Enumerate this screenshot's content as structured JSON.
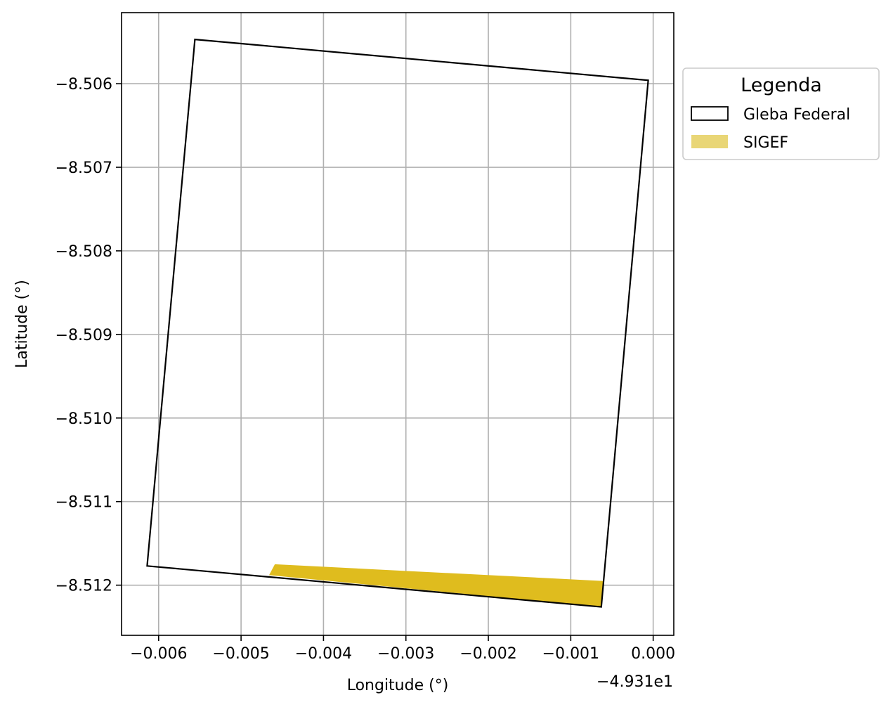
{
  "chart_data": {
    "type": "map",
    "xlabel": "Longitude (°)",
    "ylabel": "Latitude (°)",
    "x_offset_label": "−4.931e1",
    "x_offset": -49.31,
    "xlim": [
      -0.00645,
      0.00025
    ],
    "ylim": [
      -8.5126,
      -8.50515
    ],
    "grid": true,
    "x_ticks": [
      {
        "value": -0.006,
        "label": "−0.006"
      },
      {
        "value": -0.005,
        "label": "−0.005"
      },
      {
        "value": -0.004,
        "label": "−0.004"
      },
      {
        "value": -0.003,
        "label": "−0.003"
      },
      {
        "value": -0.002,
        "label": "−0.002"
      },
      {
        "value": -0.001,
        "label": "−0.001"
      },
      {
        "value": 0.0,
        "label": "0.000"
      }
    ],
    "y_ticks": [
      {
        "value": -8.506,
        "label": "−8.506"
      },
      {
        "value": -8.507,
        "label": "−8.507"
      },
      {
        "value": -8.508,
        "label": "−8.508"
      },
      {
        "value": -8.509,
        "label": "−8.509"
      },
      {
        "value": -8.51,
        "label": "−8.510"
      },
      {
        "value": -8.511,
        "label": "−8.511"
      },
      {
        "value": -8.512,
        "label": "−8.512"
      }
    ],
    "legend": {
      "title": "Legenda",
      "position": "outside-right-top",
      "entries": [
        {
          "label": "Gleba Federal",
          "style": "outline",
          "edge_color": "#000000",
          "face_color": "#ffffff"
        },
        {
          "label": "SIGEF",
          "style": "fill",
          "face_color": "#e9d676"
        }
      ]
    },
    "series": [
      {
        "name": "Gleba Federal",
        "kind": "polygon-outline",
        "color": "#000000",
        "points": [
          [
            -0.00556,
            -8.50547
          ],
          [
            -6e-05,
            -8.50596
          ],
          [
            -0.00063,
            -8.51226
          ],
          [
            -0.00614,
            -8.51177
          ]
        ]
      },
      {
        "name": "SIGEF",
        "kind": "polygon-fill",
        "color": "#dfbc1e",
        "points": [
          [
            -0.00459,
            -8.51175
          ],
          [
            -0.0006,
            -8.51195
          ],
          [
            -0.00063,
            -8.51226
          ],
          [
            -0.00466,
            -8.51188
          ]
        ]
      }
    ]
  }
}
